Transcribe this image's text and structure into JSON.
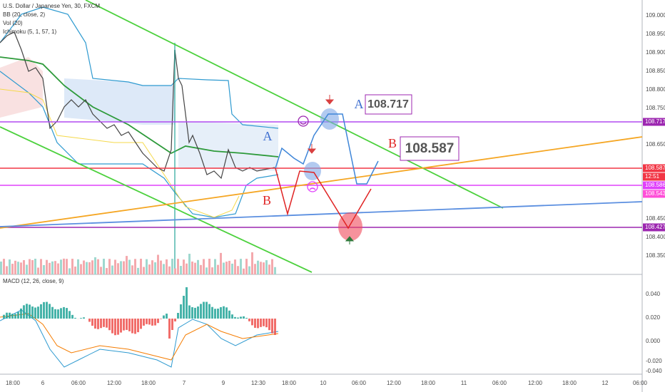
{
  "header": {
    "title": "U.S. Dollar / Japanese Yen, 30, FXCM",
    "indicators": [
      "BB (20, close, 2)",
      "Vol (20)",
      "Ichimoku (5, 1, 57, 1)"
    ]
  },
  "price_axis": [
    "109.000",
    "108.950",
    "108.900",
    "108.850",
    "108.800",
    "108.750",
    "108.650",
    "108.450",
    "108.400",
    "108.350"
  ],
  "price_tags": [
    {
      "label": "108.717",
      "color": "#9c27b0"
    },
    {
      "label": "108.587",
      "color": "#f23645"
    },
    {
      "label": "12:51",
      "color": "#f23645"
    },
    {
      "label": "108.586",
      "color": "#e040fb"
    },
    {
      "label": "108.543",
      "color": "#ff4fd8"
    },
    {
      "label": "108.427",
      "color": "#9c27b0"
    }
  ],
  "macd": {
    "title": "MACD (12, 26, close, 9)",
    "axis": [
      "0.040",
      "0.020",
      "0.000",
      "-0.020",
      "-0.040"
    ]
  },
  "time_axis": [
    "18:00",
    "6",
    "06:00",
    "12:00",
    "18:00",
    "7",
    "9",
    "12:30",
    "18:00",
    "10",
    "06:00",
    "12:00",
    "18:00",
    "11",
    "06:00",
    "12:00",
    "18:00",
    "12",
    "06:00"
  ],
  "annotations": {
    "a1": "A",
    "a2": "A",
    "b1": "B",
    "b2": "B",
    "target_high": "108.717",
    "target_mid": "108.587"
  }
}
